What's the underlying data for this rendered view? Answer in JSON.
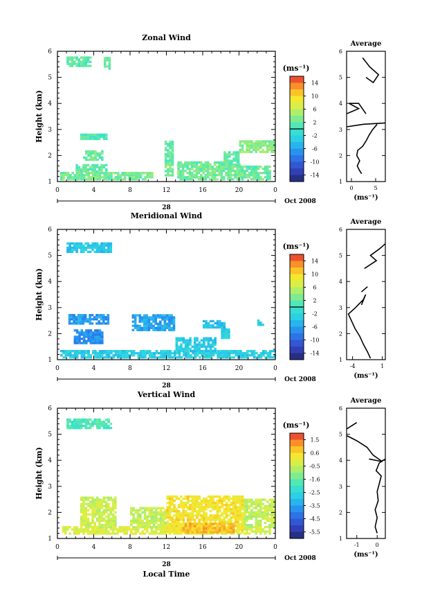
{
  "figure": {
    "xlabel": "Local Time",
    "date_label": "Oct 2008",
    "day_label": "28",
    "unit_label": "(ms⁻¹)",
    "average_title": "Average",
    "ylabel": "Height (km)"
  },
  "chart_data": [
    {
      "type": "heatmap",
      "title": "Zonal Wind",
      "xlabel": "",
      "ylabel": "Height (km)",
      "xlim": [
        0,
        24
      ],
      "ylim": [
        1,
        6
      ],
      "x_ticks": [
        "0",
        "4",
        "8",
        "12",
        "16",
        "20",
        "0"
      ],
      "y_ticks": [
        "1",
        "2",
        "3",
        "4",
        "5",
        "6"
      ],
      "colorbar": {
        "label": "(ms⁻¹)",
        "range": [
          -16,
          16
        ],
        "ticks": [
          "14",
          "10",
          "6",
          "2",
          "-2",
          "-6",
          "-10",
          "-14"
        ],
        "zero_line": 0
      },
      "regions": [
        {
          "t0": 1.0,
          "t1": 3.7,
          "h0": 5.4,
          "h1": 5.75,
          "v": 1.5
        },
        {
          "t0": 5.1,
          "t1": 5.8,
          "h0": 5.3,
          "h1": 5.75,
          "v": 2.5
        },
        {
          "t0": 2.5,
          "t1": 5.5,
          "h0": 2.6,
          "h1": 2.8,
          "v": 1.0
        },
        {
          "t0": 2.8,
          "t1": 5.0,
          "h0": 1.8,
          "h1": 2.2,
          "v": 2.0
        },
        {
          "t0": 0.3,
          "t1": 10.5,
          "h0": 1.05,
          "h1": 1.35,
          "v": 2.8
        },
        {
          "t0": 2.0,
          "t1": 5.5,
          "h0": 1.35,
          "h1": 1.6,
          "v": 2.0
        },
        {
          "t0": 11.8,
          "t1": 12.8,
          "h0": 1.2,
          "h1": 2.5,
          "v": 2.2
        },
        {
          "t0": 13.2,
          "t1": 20.0,
          "h0": 1.05,
          "h1": 1.7,
          "v": 2.5
        },
        {
          "t0": 18.3,
          "t1": 20.0,
          "h0": 1.6,
          "h1": 2.1,
          "v": 1.8
        },
        {
          "t0": 20.0,
          "t1": 23.5,
          "h0": 1.05,
          "h1": 1.6,
          "v": 2.2
        },
        {
          "t0": 20.0,
          "t1": 23.8,
          "h0": 2.1,
          "h1": 2.55,
          "v": 3.5
        }
      ],
      "average": {
        "xlim": [
          -1,
          7
        ],
        "x_ticks": [
          "0",
          "5"
        ],
        "y_ticks": [
          "1",
          "2",
          "3",
          "4",
          "5",
          "6"
        ],
        "xlabel": "(ms⁻¹)",
        "segments": [
          [
            [
              2.1,
              1.3
            ],
            [
              1.6,
              1.45
            ],
            [
              1.2,
              1.6
            ],
            [
              1.7,
              1.8
            ],
            [
              1.1,
              2.0
            ],
            [
              1.3,
              2.2
            ],
            [
              2.3,
              2.35
            ],
            [
              3.0,
              2.55
            ],
            [
              3.7,
              2.8
            ],
            [
              4.4,
              3.0
            ],
            [
              5.3,
              3.2
            ]
          ],
          [
            [
              -1.0,
              3.1
            ],
            [
              2.5,
              3.2
            ],
            [
              7.0,
              3.25
            ]
          ],
          [
            [
              -1.0,
              3.6
            ],
            [
              1.5,
              3.8
            ],
            [
              -0.5,
              4.0
            ],
            [
              1.5,
              4.0
            ],
            [
              3.0,
              3.6
            ]
          ],
          [
            [
              3.0,
              5.0
            ],
            [
              4.5,
              4.8
            ],
            [
              5.6,
              5.1
            ],
            [
              3.8,
              5.4
            ],
            [
              2.3,
              5.75
            ]
          ]
        ]
      }
    },
    {
      "type": "heatmap",
      "title": "Meridional Wind",
      "xlabel": "",
      "ylabel": "Height (km)",
      "xlim": [
        0,
        24
      ],
      "ylim": [
        1,
        6
      ],
      "x_ticks": [
        "0",
        "4",
        "8",
        "12",
        "16",
        "20",
        "0"
      ],
      "y_ticks": [
        "1",
        "2",
        "3",
        "4",
        "5",
        "6"
      ],
      "colorbar": {
        "label": "(ms⁻¹)",
        "range": [
          -16,
          16
        ],
        "ticks": [
          "14",
          "10",
          "6",
          "2",
          "-2",
          "-6",
          "-10",
          "-14"
        ],
        "zero_line": 0
      },
      "regions": [
        {
          "t0": 1.0,
          "t1": 5.8,
          "h0": 5.1,
          "h1": 5.5,
          "v": -3.5
        },
        {
          "t0": 1.2,
          "t1": 5.5,
          "h0": 2.35,
          "h1": 2.75,
          "v": -6.5
        },
        {
          "t0": 1.8,
          "t1": 5.0,
          "h0": 1.6,
          "h1": 2.1,
          "v": -7.0
        },
        {
          "t0": 8.2,
          "t1": 12.8,
          "h0": 2.1,
          "h1": 2.7,
          "v": -6.0
        },
        {
          "t0": 0.3,
          "t1": 24.0,
          "h0": 1.05,
          "h1": 1.3,
          "v": -3.0
        },
        {
          "t0": 13.0,
          "t1": 17.5,
          "h0": 1.3,
          "h1": 1.8,
          "v": -3.2
        },
        {
          "t0": 18.0,
          "t1": 19.0,
          "h0": 1.8,
          "h1": 2.2,
          "v": -3.0
        },
        {
          "t0": 16.0,
          "t1": 18.5,
          "h0": 2.2,
          "h1": 2.5,
          "v": -4.0
        },
        {
          "t0": 22.0,
          "t1": 22.6,
          "h0": 2.3,
          "h1": 2.5,
          "v": -3.5
        }
      ],
      "average": {
        "xlim": [
          -5,
          1.5
        ],
        "x_ticks": [
          "-4",
          "1"
        ],
        "y_ticks": [
          "1",
          "2",
          "3",
          "4",
          "5",
          "6"
        ],
        "xlabel": "(ms⁻¹)",
        "segments": [
          [
            [
              -1.0,
              1.05
            ],
            [
              -1.5,
              1.3
            ],
            [
              -2.2,
              1.6
            ],
            [
              -2.8,
              1.9
            ],
            [
              -3.6,
              2.2
            ],
            [
              -4.2,
              2.5
            ],
            [
              -4.7,
              2.75
            ],
            [
              -3.5,
              3.0
            ],
            [
              -2.2,
              3.3
            ],
            [
              -1.8,
              3.5
            ],
            [
              -2.5,
              3.1
            ]
          ],
          [
            [
              -2.5,
              3.6
            ],
            [
              -1.5,
              3.8
            ]
          ],
          [
            [
              -2.0,
              4.5
            ],
            [
              0.0,
              4.8
            ],
            [
              -1.0,
              5.0
            ],
            [
              0.5,
              5.25
            ],
            [
              1.5,
              5.45
            ]
          ]
        ]
      }
    },
    {
      "type": "heatmap",
      "title": "Vertical Wind",
      "xlabel": "Local Time",
      "ylabel": "Height (km)",
      "xlim": [
        0,
        24
      ],
      "ylim": [
        1,
        6
      ],
      "x_ticks": [
        "0",
        "4",
        "8",
        "12",
        "16",
        "20",
        "0"
      ],
      "y_ticks": [
        "1",
        "2",
        "3",
        "4",
        "5",
        "6"
      ],
      "colorbar": {
        "label": "(ms⁻¹)",
        "range": [
          -6,
          2
        ],
        "ticks": [
          "1.5",
          "0.6",
          "-0.5",
          "-1.6",
          "-2.5",
          "-3.5",
          "-4.5",
          "-5.5"
        ],
        "zero_line": null
      },
      "regions": [
        {
          "t0": 1.0,
          "t1": 5.8,
          "h0": 5.2,
          "h1": 5.6,
          "v": -1.8
        },
        {
          "t0": 0.5,
          "t1": 23.5,
          "h0": 1.15,
          "h1": 1.4,
          "v": -0.2
        },
        {
          "t0": 2.5,
          "t1": 6.5,
          "h0": 1.4,
          "h1": 2.6,
          "v": -0.4
        },
        {
          "t0": 8.0,
          "t1": 12.0,
          "h0": 1.4,
          "h1": 2.2,
          "v": -0.5
        },
        {
          "t0": 12.0,
          "t1": 20.5,
          "h0": 1.2,
          "h1": 2.6,
          "v": 0.3
        },
        {
          "t0": 13.5,
          "t1": 19.5,
          "h0": 1.2,
          "h1": 1.6,
          "v": 0.8
        },
        {
          "t0": 20.5,
          "t1": 23.8,
          "h0": 1.4,
          "h1": 2.5,
          "v": -0.5
        }
      ],
      "average": {
        "xlim": [
          -1.5,
          0.4
        ],
        "x_ticks": [
          "-1",
          "0"
        ],
        "y_ticks": [
          "1",
          "2",
          "3",
          "4",
          "5",
          "6"
        ],
        "xlabel": "(ms⁻¹)",
        "segments": [
          [
            [
              0.0,
              1.2
            ],
            [
              -0.1,
              1.45
            ],
            [
              0.0,
              1.8
            ],
            [
              -0.1,
              2.1
            ],
            [
              0.05,
              2.45
            ],
            [
              0.0,
              2.8
            ],
            [
              0.1,
              3.1
            ],
            [
              0.2,
              3.4
            ],
            [
              -0.05,
              3.6
            ],
            [
              0.1,
              3.9
            ],
            [
              0.4,
              4.05
            ]
          ],
          [
            [
              -0.4,
              4.05
            ],
            [
              0.25,
              3.95
            ],
            [
              -0.2,
              4.2
            ],
            [
              -0.5,
              4.5
            ],
            [
              -1.0,
              4.75
            ],
            [
              -1.5,
              4.95
            ]
          ],
          [
            [
              -1.5,
              5.2
            ],
            [
              -1.0,
              5.45
            ]
          ]
        ]
      }
    }
  ]
}
